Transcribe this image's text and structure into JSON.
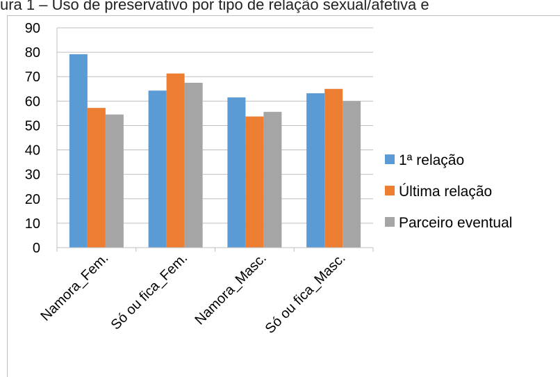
{
  "caption": "ura 1 – Uso de preservativo por tipo de relação sexual/afetiva e",
  "chart_data": {
    "type": "bar",
    "title": "",
    "xlabel": "",
    "ylabel": "",
    "ylim": [
      0,
      90
    ],
    "yticks": [
      0,
      10,
      20,
      30,
      40,
      50,
      60,
      70,
      80,
      90
    ],
    "grid": true,
    "legend": "right",
    "categories": [
      "Namora_Fem.",
      "Só ou fica_Fem.",
      "Namora_Masc.",
      "Só ou fica_Masc."
    ],
    "series": [
      {
        "name": "1ª relação",
        "color": "#5b9bd5",
        "values": [
          79.2,
          64.3,
          61.5,
          63.2
        ]
      },
      {
        "name": "Última relação",
        "color": "#ed7d31",
        "values": [
          57.2,
          71.3,
          53.7,
          65.0
        ]
      },
      {
        "name": "Parceiro eventual",
        "color": "#a5a5a5",
        "values": [
          54.5,
          67.5,
          55.6,
          60.0
        ]
      }
    ]
  }
}
